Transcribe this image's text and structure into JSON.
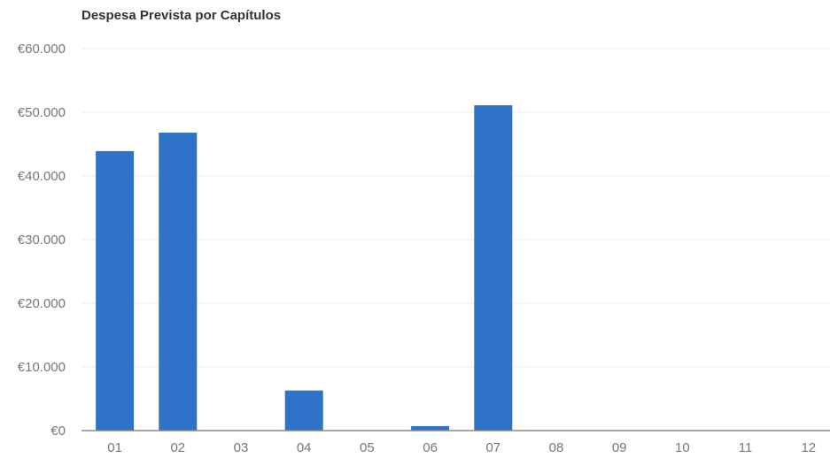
{
  "chart_data": {
    "type": "bar",
    "title": "Despesa Prevista por Capítulos",
    "xlabel": "",
    "ylabel": "",
    "categories": [
      "01",
      "02",
      "03",
      "04",
      "05",
      "06",
      "07",
      "08",
      "09",
      "10",
      "11",
      "12"
    ],
    "values": [
      43900,
      46800,
      0,
      6300,
      0,
      700,
      51100,
      0,
      0,
      0,
      0,
      0
    ],
    "ylim": [
      0,
      60000
    ],
    "y_ticks": [
      0,
      10000,
      20000,
      30000,
      40000,
      50000,
      60000
    ],
    "y_tick_labels": [
      "€0",
      "€10.000",
      "€20.000",
      "€30.000",
      "€40.000",
      "€50.000",
      "€60.000"
    ],
    "grid": true,
    "legend": "none",
    "colors": {
      "bar": "#2f73c9",
      "grid": "#eeeeee",
      "axis": "#888888",
      "tick_text": "#777777",
      "title_text": "#333333"
    }
  }
}
